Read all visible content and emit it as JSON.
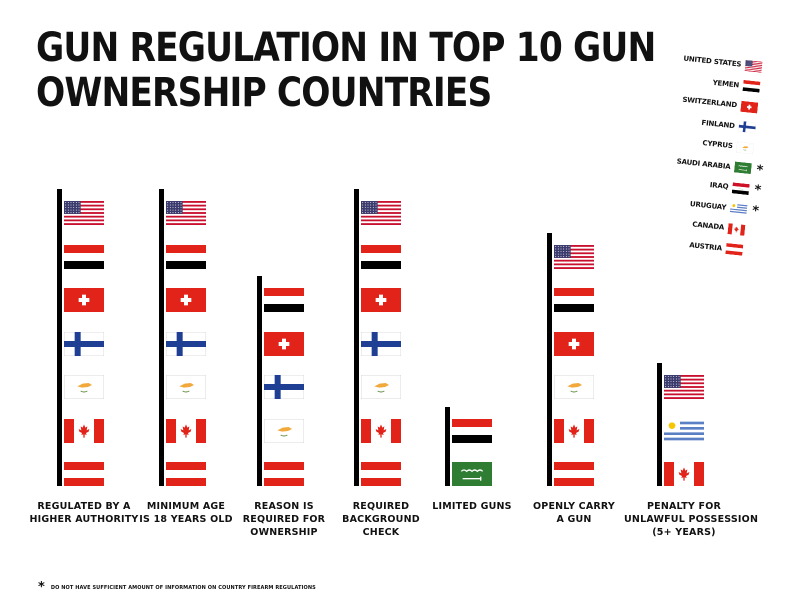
{
  "chart_data": {
    "type": "table",
    "title": "GUN REGULATION IN TOP 10 GUN OWNERSHIP COUNTRIES",
    "title_lines": [
      "GUN REGULATION IN TOP 10 GUN",
      "OWNERSHIP COUNTRIES"
    ],
    "legend_position": "top-right",
    "countries": [
      {
        "name": "UNITED STATES",
        "flag": "us",
        "insufficient_info": false
      },
      {
        "name": "YEMEN",
        "flag": "yemen",
        "insufficient_info": false
      },
      {
        "name": "SWITZERLAND",
        "flag": "switzerland",
        "insufficient_info": false
      },
      {
        "name": "FINLAND",
        "flag": "finland",
        "insufficient_info": false
      },
      {
        "name": "CYPRUS",
        "flag": "cyprus",
        "insufficient_info": false
      },
      {
        "name": "SAUDI ARABIA",
        "flag": "saudi",
        "insufficient_info": true
      },
      {
        "name": "IRAQ",
        "flag": "iraq",
        "insufficient_info": true
      },
      {
        "name": "URUGUAY",
        "flag": "uruguay",
        "insufficient_info": true
      },
      {
        "name": "CANADA",
        "flag": "canada",
        "insufficient_info": false
      },
      {
        "name": "AUSTRIA",
        "flag": "austria",
        "insufficient_info": false
      }
    ],
    "categories": [
      {
        "label": "REGULATED BY A HIGHER AUTHORITY",
        "label_lines": [
          "REGULATED BY A",
          "HIGHER AUTHORITY"
        ],
        "countries": [
          "us",
          "yemen",
          "switzerland",
          "finland",
          "cyprus",
          "canada",
          "austria"
        ]
      },
      {
        "label": "MINIMUM AGE IS 18 YEARS OLD",
        "label_lines": [
          "MINIMUM AGE",
          "IS 18 YEARS OLD"
        ],
        "countries": [
          "us",
          "yemen",
          "switzerland",
          "finland",
          "cyprus",
          "canada",
          "austria"
        ]
      },
      {
        "label": "REASON IS REQUIRED FOR OWNERSHIP",
        "label_lines": [
          "REASON IS",
          "REQUIRED FOR",
          "OWNERSHIP"
        ],
        "countries": [
          "yemen",
          "switzerland",
          "finland",
          "cyprus",
          "austria"
        ]
      },
      {
        "label": "REQUIRED BACKGROUND CHECK",
        "label_lines": [
          "REQUIRED",
          "BACKGROUND",
          "CHECK"
        ],
        "countries": [
          "us",
          "yemen",
          "switzerland",
          "finland",
          "cyprus",
          "canada",
          "austria"
        ]
      },
      {
        "label": "LIMITED GUNS",
        "label_lines": [
          "LIMITED GUNS"
        ],
        "countries": [
          "yemen",
          "saudi"
        ]
      },
      {
        "label": "OPENLY CARRY A GUN",
        "label_lines": [
          "OPENLY CARRY",
          "A GUN"
        ],
        "countries": [
          "us",
          "yemen",
          "switzerland",
          "cyprus",
          "canada",
          "austria"
        ]
      },
      {
        "label": "PENALTY FOR UNLAWFUL POSSESSION (5+ YEARS)",
        "label_lines": [
          "PENALTY FOR",
          "UNLAWFUL POSSESSION",
          "(5+ YEARS)"
        ],
        "countries": [
          "us",
          "uruguay",
          "canada"
        ]
      }
    ],
    "footnote_marker": "*",
    "footnote": "DO NOT HAVE SUFFICIENT AMOUNT OF INFORMATION ON COUNTRY FIREARM REGULATIONS"
  },
  "colors": {
    "bar": "#000000",
    "red": "#e2231a",
    "blue": "#1f3f94",
    "saudi_green": "#2e7d32",
    "uruguay_blue": "#5b7fc4",
    "cyprus_orange": "#f2a93b",
    "iraq_green": "#2e7d32"
  }
}
